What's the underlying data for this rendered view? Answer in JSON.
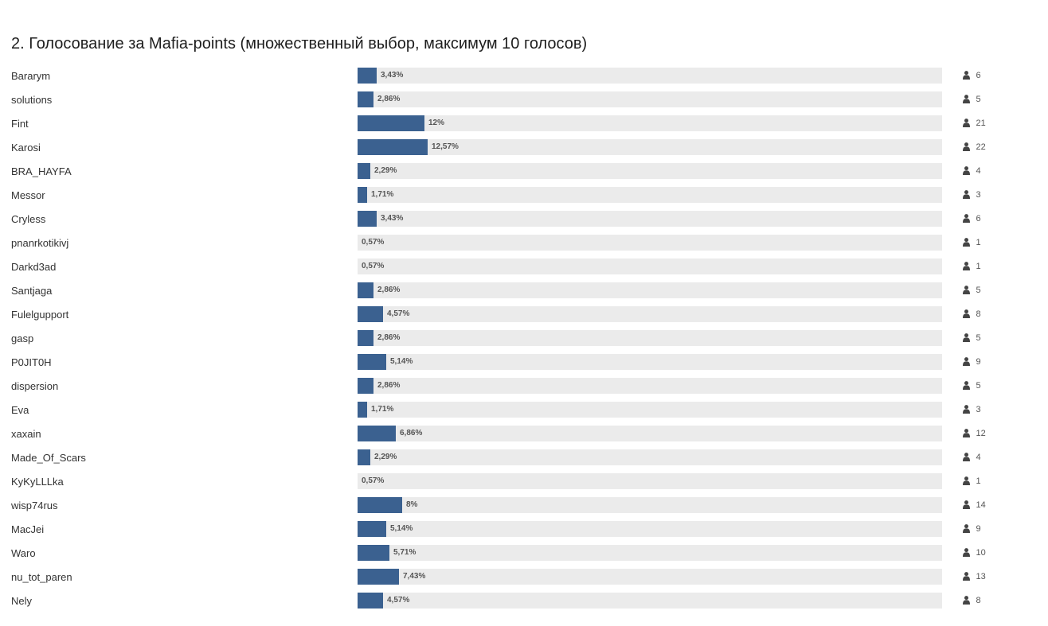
{
  "poll": {
    "title": "2. Голосование за Mafia-points (множественный выбор, максимум 10 голосов)",
    "bar_color": "#3b6190",
    "track_color": "#ebebeb",
    "vote_icon": "user-icon",
    "options": [
      {
        "label": "Bararym",
        "percent": 3.43,
        "percent_text": "3,43%",
        "votes": "6"
      },
      {
        "label": "solutions",
        "percent": 2.86,
        "percent_text": "2,86%",
        "votes": "5"
      },
      {
        "label": "Fint",
        "percent": 12,
        "percent_text": "12%",
        "votes": "21"
      },
      {
        "label": "Karosi",
        "percent": 12.57,
        "percent_text": "12,57%",
        "votes": "22"
      },
      {
        "label": "BRA_HAYFA",
        "percent": 2.29,
        "percent_text": "2,29%",
        "votes": "4"
      },
      {
        "label": "Messor",
        "percent": 1.71,
        "percent_text": "1,71%",
        "votes": "3"
      },
      {
        "label": "Cryless",
        "percent": 3.43,
        "percent_text": "3,43%",
        "votes": "6"
      },
      {
        "label": "pnanrkotikivj",
        "percent": 0.57,
        "percent_text": "0,57%",
        "votes": "1"
      },
      {
        "label": "Darkd3ad",
        "percent": 0.57,
        "percent_text": "0,57%",
        "votes": "1"
      },
      {
        "label": "Santjaga",
        "percent": 2.86,
        "percent_text": "2,86%",
        "votes": "5"
      },
      {
        "label": "Fulelgupport",
        "percent": 4.57,
        "percent_text": "4,57%",
        "votes": "8"
      },
      {
        "label": "gasp",
        "percent": 2.86,
        "percent_text": "2,86%",
        "votes": "5"
      },
      {
        "label": "P0JIT0H",
        "percent": 5.14,
        "percent_text": "5,14%",
        "votes": "9"
      },
      {
        "label": "dispersion",
        "percent": 2.86,
        "percent_text": "2,86%",
        "votes": "5"
      },
      {
        "label": "Eva",
        "percent": 1.71,
        "percent_text": "1,71%",
        "votes": "3"
      },
      {
        "label": "xaxain",
        "percent": 6.86,
        "percent_text": "6,86%",
        "votes": "12"
      },
      {
        "label": "Made_Of_Scars",
        "percent": 2.29,
        "percent_text": "2,29%",
        "votes": "4"
      },
      {
        "label": "KyKyLLLka",
        "percent": 0.57,
        "percent_text": "0,57%",
        "votes": "1"
      },
      {
        "label": "wisp74rus",
        "percent": 8,
        "percent_text": "8%",
        "votes": "14"
      },
      {
        "label": "MacJei",
        "percent": 5.14,
        "percent_text": "5,14%",
        "votes": "9"
      },
      {
        "label": "Waro",
        "percent": 5.71,
        "percent_text": "5,71%",
        "votes": "10"
      },
      {
        "label": "nu_tot_paren",
        "percent": 7.43,
        "percent_text": "7,43%",
        "votes": "13"
      },
      {
        "label": "Nely",
        "percent": 4.57,
        "percent_text": "4,57%",
        "votes": "8"
      }
    ]
  }
}
